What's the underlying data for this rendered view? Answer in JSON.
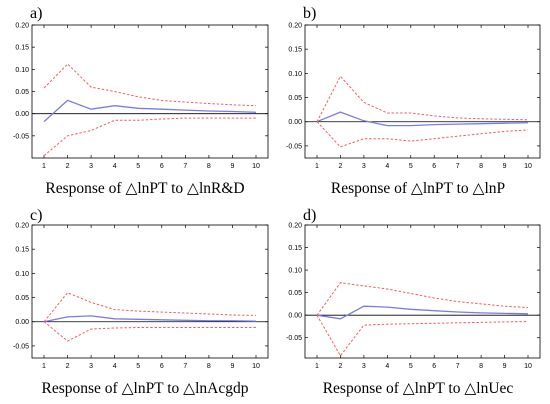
{
  "chart_data": [
    {
      "type": "line",
      "panel_label": "a)",
      "caption": "Response of △lnPT to △lnR&D",
      "x": [
        1,
        2,
        3,
        4,
        5,
        6,
        7,
        8,
        9,
        10
      ],
      "x_ticks": [
        "1",
        "2",
        "3",
        "4",
        "5",
        "6",
        "7",
        "8",
        "9",
        "10"
      ],
      "ylim": [
        -0.1,
        0.2
      ],
      "y_ticks": [
        "0.20",
        "0.15",
        "0.10",
        "0.05",
        "0.00",
        "-0.05"
      ],
      "zero_line": true,
      "series": [
        {
          "role": "response",
          "color": "#7b7be8",
          "style": "solid",
          "values": [
            -0.018,
            0.03,
            0.01,
            0.018,
            0.012,
            0.01,
            0.008,
            0.006,
            0.005,
            0.003
          ]
        },
        {
          "role": "upper",
          "color": "#f06060",
          "style": "dashed",
          "values": [
            0.058,
            0.112,
            0.06,
            0.05,
            0.038,
            0.03,
            0.026,
            0.023,
            0.02,
            0.018
          ]
        },
        {
          "role": "lower",
          "color": "#f06060",
          "style": "dashed",
          "values": [
            -0.095,
            -0.05,
            -0.038,
            -0.015,
            -0.015,
            -0.012,
            -0.01,
            -0.01,
            -0.01,
            -0.01
          ]
        }
      ]
    },
    {
      "type": "line",
      "panel_label": "b)",
      "caption": "Response of △lnPT to △lnP",
      "x": [
        1,
        2,
        3,
        4,
        5,
        6,
        7,
        8,
        9,
        10
      ],
      "x_ticks": [
        "1",
        "2",
        "3",
        "4",
        "5",
        "6",
        "7",
        "8",
        "9",
        "10"
      ],
      "ylim": [
        -0.075,
        0.2
      ],
      "y_ticks": [
        "0.20",
        "0.15",
        "0.10",
        "0.05",
        "0.00",
        "-0.05"
      ],
      "zero_line": true,
      "series": [
        {
          "role": "response",
          "color": "#7b7be8",
          "style": "solid",
          "values": [
            0.0,
            0.02,
            0.002,
            -0.008,
            -0.008,
            -0.006,
            -0.005,
            -0.004,
            -0.003,
            -0.002
          ]
        },
        {
          "role": "upper",
          "color": "#f06060",
          "style": "dashed",
          "values": [
            0.0,
            0.094,
            0.04,
            0.018,
            0.018,
            0.012,
            0.008,
            0.006,
            0.005,
            0.004
          ]
        },
        {
          "role": "lower",
          "color": "#f06060",
          "style": "dashed",
          "values": [
            0.0,
            -0.052,
            -0.035,
            -0.035,
            -0.04,
            -0.035,
            -0.03,
            -0.025,
            -0.02,
            -0.017
          ]
        }
      ]
    },
    {
      "type": "line",
      "panel_label": "c)",
      "caption": "Response of △lnPT to △lnAcgdp",
      "x": [
        1,
        2,
        3,
        4,
        5,
        6,
        7,
        8,
        9,
        10
      ],
      "x_ticks": [
        "1",
        "2",
        "3",
        "4",
        "5",
        "6",
        "7",
        "8",
        "9",
        "10"
      ],
      "ylim": [
        -0.075,
        0.2
      ],
      "y_ticks": [
        "0.20",
        "0.15",
        "0.10",
        "0.05",
        "0.00",
        "-0.05"
      ],
      "zero_line": true,
      "series": [
        {
          "role": "response",
          "color": "#7b7be8",
          "style": "solid",
          "values": [
            0.0,
            0.01,
            0.012,
            0.006,
            0.005,
            0.004,
            0.003,
            0.002,
            0.002,
            0.001
          ]
        },
        {
          "role": "upper",
          "color": "#f06060",
          "style": "dashed",
          "values": [
            0.0,
            0.06,
            0.04,
            0.025,
            0.022,
            0.02,
            0.018,
            0.016,
            0.014,
            0.013
          ]
        },
        {
          "role": "lower",
          "color": "#f06060",
          "style": "dashed",
          "values": [
            0.0,
            -0.04,
            -0.015,
            -0.013,
            -0.012,
            -0.012,
            -0.012,
            -0.012,
            -0.012,
            -0.012
          ]
        }
      ]
    },
    {
      "type": "line",
      "panel_label": "d)",
      "caption": "Response of △lnPT to △lnUec",
      "x": [
        1,
        2,
        3,
        4,
        5,
        6,
        7,
        8,
        9,
        10
      ],
      "x_ticks": [
        "1",
        "2",
        "3",
        "4",
        "5",
        "6",
        "7",
        "8",
        "9",
        "10"
      ],
      "ylim": [
        -0.095,
        0.2
      ],
      "y_ticks": [
        "0.20",
        "0.15",
        "0.10",
        "0.05",
        "0.00",
        "-0.05"
      ],
      "zero_line": true,
      "series": [
        {
          "role": "response",
          "color": "#7b7be8",
          "style": "solid",
          "values": [
            0.0,
            -0.008,
            0.02,
            0.018,
            0.013,
            0.01,
            0.007,
            0.005,
            0.004,
            0.003
          ]
        },
        {
          "role": "upper",
          "color": "#f06060",
          "style": "dashed",
          "values": [
            0.0,
            0.072,
            0.065,
            0.058,
            0.048,
            0.038,
            0.03,
            0.025,
            0.02,
            0.017
          ]
        },
        {
          "role": "lower",
          "color": "#f06060",
          "style": "dashed",
          "values": [
            0.0,
            -0.09,
            -0.022,
            -0.02,
            -0.019,
            -0.018,
            -0.017,
            -0.016,
            -0.015,
            -0.014
          ]
        }
      ]
    }
  ]
}
